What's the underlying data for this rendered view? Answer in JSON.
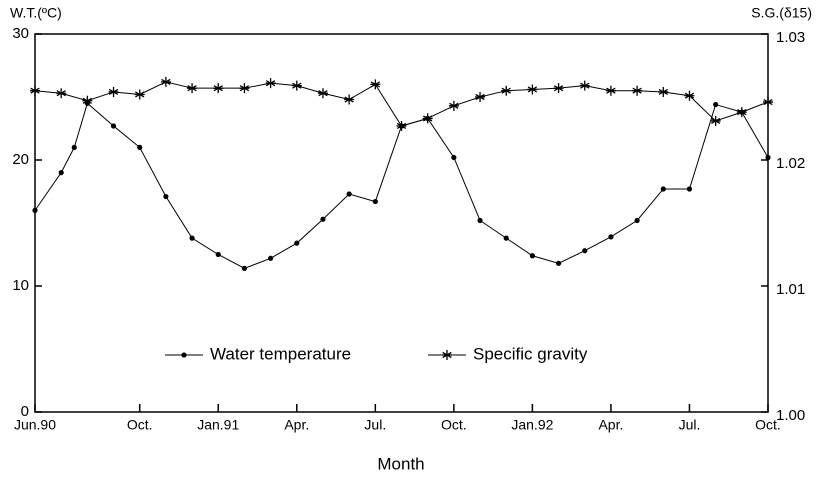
{
  "chart_data": {
    "type": "line",
    "ylabel": "W.T.(ºC)",
    "y2label": "S.G.(δ15)",
    "xlabel": "Month",
    "xlim": [
      0,
      28
    ],
    "xticks": [
      {
        "value": 0,
        "label": "Jun.90"
      },
      {
        "value": 4,
        "label": "Oct."
      },
      {
        "value": 7,
        "label": "Jan.91"
      },
      {
        "value": 10,
        "label": "Apr."
      },
      {
        "value": 13,
        "label": "Jul."
      },
      {
        "value": 16,
        "label": "Oct."
      },
      {
        "value": 19,
        "label": "Jan.92"
      },
      {
        "value": 22,
        "label": "Apr."
      },
      {
        "value": 25,
        "label": "Jul."
      },
      {
        "value": 28,
        "label": "Oct."
      }
    ],
    "ylim": [
      0,
      30
    ],
    "yticks": [
      0,
      10,
      20,
      30
    ],
    "y2lim": [
      1,
      1.03
    ],
    "y2ticks": [
      {
        "value": 1,
        "label": "1.00"
      },
      1.01,
      1.02,
      1.03
    ],
    "series": [
      {
        "name": "Water temperature",
        "color": "#000000",
        "marker": "dot",
        "x": [
          0,
          1,
          1.5,
          2,
          3,
          4,
          5,
          6,
          7,
          8,
          9,
          10,
          11,
          12,
          13,
          14,
          15,
          16,
          17,
          18,
          19,
          20,
          21,
          22,
          23,
          24,
          25,
          26,
          27,
          28
        ],
        "values": [
          16,
          19,
          21,
          24.5,
          22.7,
          21,
          17.1,
          13.8,
          12.5,
          11.4,
          12.2,
          13.4,
          15.3,
          17.3,
          16.7,
          22.7,
          23.3,
          20.2,
          15.2,
          13.8,
          12.4,
          11.8,
          12.8,
          13.9,
          15.2,
          17.7,
          17.7,
          24.4,
          23.8,
          20.2
        ]
      },
      {
        "name": "Specific gravity",
        "color": "#000000",
        "marker": "asterisk",
        "axis": "y2",
        "x": [
          0,
          1,
          2,
          3,
          4,
          5,
          6,
          7,
          8,
          9,
          10,
          11,
          12,
          13,
          14,
          15,
          16,
          17,
          18,
          19,
          20,
          21,
          22,
          23,
          24,
          25,
          26,
          27,
          28
        ],
        "values": [
          1.0255,
          1.0253,
          1.0247,
          1.0254,
          1.0252,
          1.0262,
          1.0257,
          1.0257,
          1.0257,
          1.0261,
          1.0259,
          1.0253,
          1.0248,
          1.026,
          1.0227,
          1.0233,
          1.0243,
          1.025,
          1.0255,
          1.0256,
          1.0257,
          1.0259,
          1.0255,
          1.0255,
          1.0254,
          1.0251,
          1.0231,
          1.0238,
          1.0246
        ]
      }
    ]
  }
}
